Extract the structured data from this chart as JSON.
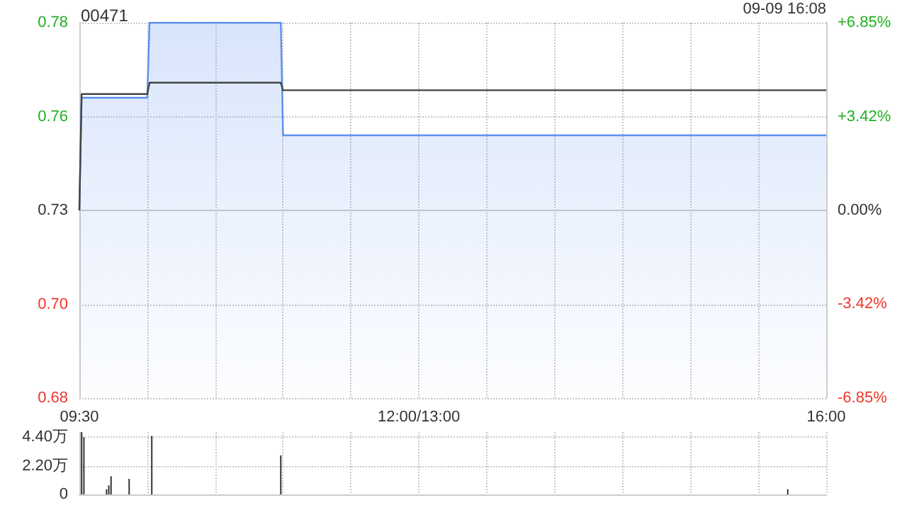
{
  "chart_data": [
    {
      "type": "line",
      "title": "00471",
      "annotations": [
        "09-09 16:08"
      ],
      "categories": [
        "09:30",
        null,
        null,
        null,
        null,
        null,
        null,
        null,
        null,
        null,
        null,
        null,
        null,
        null,
        null,
        null,
        null,
        null,
        null,
        null,
        null,
        null,
        null,
        null,
        null,
        null,
        null,
        null,
        null,
        null,
        null,
        null,
        null,
        null,
        null,
        null,
        null,
        null,
        null,
        null,
        null,
        null,
        null,
        null,
        null,
        null,
        null,
        null,
        null,
        null,
        null,
        null,
        null,
        null,
        null,
        null,
        null,
        null,
        null,
        null,
        null,
        null,
        null,
        null,
        null,
        null,
        null,
        null,
        null,
        null,
        null,
        null,
        null,
        null,
        null,
        null,
        null,
        null,
        null,
        null,
        null,
        null,
        null,
        null,
        null,
        null,
        null,
        null,
        null,
        null,
        null,
        null,
        null,
        null,
        null,
        null,
        null,
        null,
        null,
        null,
        null,
        null,
        null,
        null,
        null,
        null,
        null,
        null,
        null,
        null,
        null,
        null,
        null,
        null,
        null,
        null,
        null,
        null,
        null,
        null,
        null,
        null,
        null,
        null,
        null,
        null,
        null,
        null,
        null,
        null,
        null,
        null,
        null,
        null,
        null,
        null,
        null,
        null,
        null,
        null,
        null,
        null,
        null,
        null,
        null,
        null,
        null,
        null,
        null,
        null,
        "12:00/13:00",
        null,
        null,
        null,
        null,
        null,
        null,
        null,
        null,
        null,
        null,
        null,
        null,
        null,
        null,
        null,
        null,
        null,
        null,
        null,
        null,
        null,
        null,
        null,
        null,
        null,
        null,
        null,
        null,
        null,
        null,
        null,
        null,
        null,
        null,
        null,
        null,
        null,
        null,
        null,
        null,
        null,
        null,
        null,
        null,
        null,
        null,
        null,
        null,
        null,
        null,
        null,
        null,
        null,
        null,
        null,
        null,
        null,
        null,
        null,
        null,
        null,
        null,
        null,
        null,
        null,
        null,
        null,
        null,
        null,
        null,
        null,
        null,
        null,
        null,
        null,
        null,
        null,
        null,
        null,
        null,
        null,
        null,
        null,
        null,
        null,
        null,
        null,
        null,
        null,
        null,
        null,
        null,
        null,
        null,
        null,
        null,
        null,
        null,
        null,
        null,
        null,
        null,
        null,
        null,
        null,
        null,
        null,
        null,
        null,
        null,
        null,
        null,
        null,
        null,
        null,
        null,
        null,
        null,
        null,
        null,
        null,
        null,
        null,
        null,
        null,
        null,
        null,
        null,
        null,
        null,
        null,
        null,
        null,
        null,
        null,
        null,
        null,
        null,
        null,
        null,
        null,
        null,
        null,
        null,
        null,
        null,
        null,
        null,
        null,
        null,
        null,
        null,
        null,
        null,
        null,
        null,
        null,
        null,
        null,
        null,
        null,
        null,
        null,
        null,
        null,
        null,
        null,
        null,
        null,
        null,
        null,
        null,
        null,
        null,
        null,
        null,
        null,
        null,
        null,
        "16:00"
      ],
      "ylim": [
        0.68,
        0.78
      ],
      "yticks": [
        0.68,
        {
          "value": 0.705,
          "label": "0.70"
        },
        0.73,
        {
          "value": 0.755,
          "label": "0.76"
        },
        0.78
      ],
      "y2lim": [
        -6.85,
        6.85
      ],
      "y2ticks": [
        {
          "value": -6.85,
          "label": "-6.85%"
        },
        {
          "value": -3.42,
          "label": "-3.42%"
        },
        {
          "value": 0,
          "label": "0.00%"
        },
        {
          "value": 3.42,
          "label": "+3.42%"
        },
        {
          "value": 6.85,
          "label": "+6.85%"
        }
      ],
      "grid": true,
      "marker": "none",
      "series": [
        {
          "type": "area",
          "color": "#5b8ff0",
          "values": [
            0.73,
            0.76,
            0.76,
            0.76,
            0.76,
            0.76,
            0.76,
            0.76,
            0.76,
            0.76,
            0.76,
            0.76,
            0.76,
            0.76,
            0.76,
            0.76,
            0.76,
            0.76,
            0.76,
            0.76,
            0.76,
            0.76,
            0.76,
            0.76,
            0.76,
            0.76,
            0.76,
            0.76,
            0.76,
            0.76,
            0.76,
            0.78,
            0.78,
            0.78,
            0.78,
            0.78,
            0.78,
            0.78,
            0.78,
            0.78,
            0.78,
            0.78,
            0.78,
            0.78,
            0.78,
            0.78,
            0.78,
            0.78,
            0.78,
            0.78,
            0.78,
            0.78,
            0.78,
            0.78,
            0.78,
            0.78,
            0.78,
            0.78,
            0.78,
            0.78,
            0.78,
            0.78,
            0.78,
            0.78,
            0.78,
            0.78,
            0.78,
            0.78,
            0.78,
            0.78,
            0.78,
            0.78,
            0.78,
            0.78,
            0.78,
            0.78,
            0.78,
            0.78,
            0.78,
            0.78,
            0.78,
            0.78,
            0.78,
            0.78,
            0.78,
            0.78,
            0.78,
            0.78,
            0.78,
            0.78,
            0.75,
            0.75,
            0.75,
            0.75,
            0.75,
            0.75,
            0.75,
            0.75,
            0.75,
            0.75,
            0.75,
            0.75,
            0.75,
            0.75,
            0.75,
            0.75,
            0.75,
            0.75,
            0.75,
            0.75,
            0.75,
            0.75,
            0.75,
            0.75,
            0.75,
            0.75,
            0.75,
            0.75,
            0.75,
            0.75,
            0.75,
            0.75,
            0.75,
            0.75,
            0.75,
            0.75,
            0.75,
            0.75,
            0.75,
            0.75,
            0.75,
            0.75,
            0.75,
            0.75,
            0.75,
            0.75,
            0.75,
            0.75,
            0.75,
            0.75,
            0.75,
            0.75,
            0.75,
            0.75,
            0.75,
            0.75,
            0.75,
            0.75,
            0.75,
            0.75,
            0.75,
            0.75,
            0.75,
            0.75,
            0.75,
            0.75,
            0.75,
            0.75,
            0.75,
            0.75,
            0.75,
            0.75,
            0.75,
            0.75,
            0.75,
            0.75,
            0.75,
            0.75,
            0.75,
            0.75,
            0.75,
            0.75,
            0.75,
            0.75,
            0.75,
            0.75,
            0.75,
            0.75,
            0.75,
            0.75,
            0.75,
            0.75,
            0.75,
            0.75,
            0.75,
            0.75,
            0.75,
            0.75,
            0.75,
            0.75,
            0.75,
            0.75,
            0.75,
            0.75,
            0.75,
            0.75,
            0.75,
            0.75,
            0.75,
            0.75,
            0.75,
            0.75,
            0.75,
            0.75,
            0.75,
            0.75,
            0.75,
            0.75,
            0.75,
            0.75,
            0.75,
            0.75,
            0.75,
            0.75,
            0.75,
            0.75,
            0.75,
            0.75,
            0.75,
            0.75,
            0.75,
            0.75,
            0.75,
            0.75,
            0.75,
            0.75,
            0.75,
            0.75,
            0.75,
            0.75,
            0.75,
            0.75,
            0.75,
            0.75,
            0.75,
            0.75,
            0.75,
            0.75,
            0.75,
            0.75,
            0.75,
            0.75,
            0.75,
            0.75,
            0.75,
            0.75,
            0.75,
            0.75,
            0.75,
            0.75,
            0.75,
            0.75,
            0.75,
            0.75,
            0.75,
            0.75,
            0.75,
            0.75,
            0.75,
            0.75,
            0.75,
            0.75,
            0.75,
            0.75,
            0.75,
            0.75,
            0.75,
            0.75,
            0.75,
            0.75,
            0.75,
            0.75,
            0.75,
            0.75,
            0.75,
            0.75,
            0.75,
            0.75,
            0.75,
            0.75,
            0.75,
            0.75,
            0.75,
            0.75,
            0.75,
            0.75,
            0.75,
            0.75,
            0.75,
            0.75,
            0.75,
            0.75,
            0.75,
            0.75,
            0.75,
            0.75,
            0.75,
            0.75,
            0.75,
            0.75,
            0.75,
            0.75,
            0.75,
            0.75,
            0.75,
            0.75,
            0.75,
            0.75,
            0.75,
            0.75,
            0.75,
            0.75,
            0.75,
            0.75,
            0.75,
            0.75,
            0.75,
            0.75,
            0.75,
            0.75,
            0.75,
            0.75,
            0.75,
            0.75,
            0.75,
            0.75,
            0.75,
            0.75,
            0.75,
            0.75,
            0.75
          ]
        },
        {
          "color": "#444444",
          "values": [
            0.73,
            0.761,
            0.761,
            0.761,
            0.761,
            0.761,
            0.761,
            0.761,
            0.761,
            0.761,
            0.761,
            0.761,
            0.761,
            0.761,
            0.761,
            0.761,
            0.761,
            0.761,
            0.761,
            0.761,
            0.761,
            0.761,
            0.761,
            0.761,
            0.761,
            0.761,
            0.761,
            0.761,
            0.761,
            0.761,
            0.761,
            0.764,
            0.764,
            0.764,
            0.764,
            0.764,
            0.764,
            0.764,
            0.764,
            0.764,
            0.764,
            0.764,
            0.764,
            0.764,
            0.764,
            0.764,
            0.764,
            0.764,
            0.764,
            0.764,
            0.764,
            0.764,
            0.764,
            0.764,
            0.764,
            0.764,
            0.764,
            0.764,
            0.764,
            0.764,
            0.764,
            0.764,
            0.764,
            0.764,
            0.764,
            0.764,
            0.764,
            0.764,
            0.764,
            0.764,
            0.764,
            0.764,
            0.764,
            0.764,
            0.764,
            0.764,
            0.764,
            0.764,
            0.764,
            0.764,
            0.764,
            0.764,
            0.764,
            0.764,
            0.764,
            0.764,
            0.764,
            0.764,
            0.764,
            0.764,
            0.762,
            0.762,
            0.762,
            0.762,
            0.762,
            0.762,
            0.762,
            0.762,
            0.762,
            0.762,
            0.762,
            0.762,
            0.762,
            0.762,
            0.762,
            0.762,
            0.762,
            0.762,
            0.762,
            0.762,
            0.762,
            0.762,
            0.762,
            0.762,
            0.762,
            0.762,
            0.762,
            0.762,
            0.762,
            0.762,
            0.762,
            0.762,
            0.762,
            0.762,
            0.762,
            0.762,
            0.762,
            0.762,
            0.762,
            0.762,
            0.762,
            0.762,
            0.762,
            0.762,
            0.762,
            0.762,
            0.762,
            0.762,
            0.762,
            0.762,
            0.762,
            0.762,
            0.762,
            0.762,
            0.762,
            0.762,
            0.762,
            0.762,
            0.762,
            0.762,
            0.762,
            0.762,
            0.762,
            0.762,
            0.762,
            0.762,
            0.762,
            0.762,
            0.762,
            0.762,
            0.762,
            0.762,
            0.762,
            0.762,
            0.762,
            0.762,
            0.762,
            0.762,
            0.762,
            0.762,
            0.762,
            0.762,
            0.762,
            0.762,
            0.762,
            0.762,
            0.762,
            0.762,
            0.762,
            0.762,
            0.762,
            0.762,
            0.762,
            0.762,
            0.762,
            0.762,
            0.762,
            0.762,
            0.762,
            0.762,
            0.762,
            0.762,
            0.762,
            0.762,
            0.762,
            0.762,
            0.762,
            0.762,
            0.762,
            0.762,
            0.762,
            0.762,
            0.762,
            0.762,
            0.762,
            0.762,
            0.762,
            0.762,
            0.762,
            0.762,
            0.762,
            0.762,
            0.762,
            0.762,
            0.762,
            0.762,
            0.762,
            0.762,
            0.762,
            0.762,
            0.762,
            0.762,
            0.762,
            0.762,
            0.762,
            0.762,
            0.762,
            0.762,
            0.762,
            0.762,
            0.762,
            0.762,
            0.762,
            0.762,
            0.762,
            0.762,
            0.762,
            0.762,
            0.762,
            0.762,
            0.762,
            0.762,
            0.762,
            0.762,
            0.762,
            0.762,
            0.762,
            0.762,
            0.762,
            0.762,
            0.762,
            0.762,
            0.762,
            0.762,
            0.762,
            0.762,
            0.762,
            0.762,
            0.762,
            0.762,
            0.762,
            0.762,
            0.762,
            0.762,
            0.762,
            0.762,
            0.762,
            0.762,
            0.762,
            0.762,
            0.762,
            0.762,
            0.762,
            0.762,
            0.762,
            0.762,
            0.762,
            0.762,
            0.762,
            0.762,
            0.762,
            0.762,
            0.762,
            0.762,
            0.762,
            0.762,
            0.762,
            0.762,
            0.762,
            0.762,
            0.762,
            0.762,
            0.762,
            0.762,
            0.762,
            0.762,
            0.762,
            0.762,
            0.762,
            0.762,
            0.762,
            0.762,
            0.762,
            0.762,
            0.762,
            0.762,
            0.762,
            0.762,
            0.762,
            0.762,
            0.762,
            0.762,
            0.762,
            0.762,
            0.762,
            0.762,
            0.762,
            0.762,
            0.762,
            0.762,
            0.762,
            0.762,
            0.762,
            0.762,
            0.762,
            0.762,
            0.762,
            0.762,
            0.762,
            0.762,
            0.762
          ]
        }
      ]
    },
    {
      "type": "bar",
      "color": "#333333",
      "categories": [
        null,
        null,
        null,
        null,
        null,
        null,
        null,
        null,
        null,
        null,
        null,
        null,
        null,
        null,
        null,
        null,
        null,
        null,
        null,
        null,
        null,
        null,
        null,
        null,
        null,
        null,
        null,
        null,
        null,
        null,
        null,
        null,
        null,
        null,
        null,
        null,
        null,
        null,
        null,
        null,
        null,
        null,
        null,
        null,
        null,
        null,
        null,
        null,
        null,
        null,
        null,
        null,
        null,
        null,
        null,
        null,
        null,
        null,
        null,
        null,
        null,
        null,
        null,
        null,
        null,
        null,
        null,
        null,
        null,
        null,
        null,
        null,
        null,
        null,
        null,
        null,
        null,
        null,
        null,
        null,
        null,
        null,
        null,
        null,
        null,
        null,
        null,
        null,
        null,
        null,
        null,
        null,
        null,
        null,
        null,
        null,
        null,
        null,
        null,
        null,
        null,
        null,
        null,
        null,
        null,
        null,
        null,
        null,
        null,
        null,
        null,
        null,
        null,
        null,
        null,
        null,
        null,
        null,
        null,
        null,
        null,
        null,
        null,
        null,
        null,
        null,
        null,
        null,
        null,
        null,
        null,
        null,
        null,
        null,
        null,
        null,
        null,
        null,
        null,
        null,
        null,
        null,
        null,
        null,
        null,
        null,
        null,
        null,
        null,
        null,
        null,
        null,
        null,
        null,
        null,
        null,
        null,
        null,
        null,
        null,
        null,
        null,
        null,
        null,
        null,
        null,
        null,
        null,
        null,
        null,
        null,
        null,
        null,
        null,
        null,
        null,
        null,
        null,
        null,
        null,
        null,
        null,
        null,
        null,
        null,
        null,
        null,
        null,
        null,
        null,
        null,
        null,
        null,
        null,
        null,
        null,
        null,
        null,
        null,
        null,
        null,
        null,
        null,
        null,
        null,
        null,
        null,
        null,
        null,
        null,
        null,
        null,
        null,
        null,
        null,
        null,
        null,
        null,
        null,
        null,
        null,
        null,
        null,
        null,
        null,
        null,
        null,
        null,
        null,
        null,
        null,
        null,
        null,
        null,
        null,
        null,
        null,
        null,
        null,
        null,
        null,
        null,
        null,
        null,
        null,
        null,
        null,
        null,
        null,
        null,
        null,
        null,
        null,
        null,
        null,
        null,
        null,
        null,
        null,
        null,
        null,
        null,
        null,
        null,
        null,
        null,
        null,
        null,
        null,
        null,
        null,
        null,
        null,
        null,
        null,
        null,
        null,
        null,
        null,
        null,
        null,
        null,
        null,
        null,
        null,
        null,
        null,
        null,
        null,
        null,
        null,
        null,
        null,
        null,
        null,
        null,
        null,
        null,
        null,
        null,
        null,
        null,
        null,
        null,
        null,
        null,
        null,
        null,
        null,
        null,
        null,
        null,
        null,
        null,
        null,
        null,
        null,
        null,
        null,
        null,
        null,
        null,
        null,
        null,
        null,
        null,
        null,
        null,
        null,
        null,
        null
      ],
      "ylim": [
        0,
        4.8
      ],
      "yticks": [
        0,
        {
          "value": 2.2,
          "label": "2.20万"
        },
        {
          "value": 4.4,
          "label": "4.40万"
        }
      ],
      "tick_labels": "y",
      "grid": true,
      "values": [
        null,
        4.8,
        4.4,
        null,
        null,
        null,
        null,
        null,
        null,
        null,
        null,
        null,
        0.4,
        0.7,
        1.4,
        null,
        null,
        null,
        null,
        null,
        null,
        null,
        1.2,
        null,
        null,
        null,
        null,
        null,
        null,
        null,
        null,
        null,
        4.5,
        null,
        null,
        null,
        null,
        null,
        null,
        null,
        null,
        null,
        null,
        null,
        null,
        null,
        null,
        null,
        null,
        null,
        null,
        null,
        null,
        null,
        null,
        null,
        null,
        null,
        null,
        null,
        null,
        null,
        null,
        null,
        null,
        null,
        null,
        null,
        null,
        null,
        null,
        null,
        null,
        null,
        null,
        null,
        null,
        null,
        null,
        null,
        null,
        null,
        null,
        null,
        null,
        null,
        null,
        null,
        null,
        3.0,
        null,
        null,
        null,
        null,
        null,
        null,
        null,
        null,
        null,
        null,
        null,
        null,
        null,
        null,
        null,
        null,
        null,
        null,
        null,
        null,
        null,
        null,
        null,
        null,
        null,
        null,
        null,
        null,
        null,
        null,
        null,
        null,
        null,
        null,
        null,
        null,
        null,
        null,
        null,
        null,
        null,
        null,
        null,
        null,
        null,
        null,
        null,
        null,
        null,
        null,
        null,
        null,
        null,
        null,
        null,
        null,
        null,
        null,
        null,
        null,
        null,
        null,
        null,
        null,
        null,
        null,
        null,
        null,
        null,
        null,
        null,
        null,
        null,
        null,
        null,
        null,
        null,
        null,
        null,
        null,
        null,
        null,
        null,
        null,
        null,
        null,
        null,
        null,
        null,
        null,
        null,
        null,
        null,
        null,
        null,
        null,
        null,
        null,
        null,
        null,
        null,
        null,
        null,
        null,
        null,
        null,
        null,
        null,
        null,
        null,
        null,
        null,
        null,
        null,
        null,
        null,
        null,
        null,
        null,
        null,
        null,
        null,
        null,
        null,
        null,
        null,
        null,
        null,
        null,
        null,
        null,
        null,
        null,
        null,
        null,
        null,
        null,
        null,
        null,
        null,
        null,
        null,
        null,
        null,
        null,
        null,
        null,
        null,
        null,
        null,
        null,
        null,
        null,
        null,
        null,
        null,
        null,
        null,
        null,
        null,
        null,
        null,
        null,
        null,
        null,
        null,
        null,
        null,
        null,
        null,
        null,
        null,
        null,
        null,
        null,
        null,
        null,
        null,
        null,
        null,
        null,
        null,
        null,
        null,
        null,
        null,
        null,
        null,
        null,
        null,
        null,
        null,
        null,
        null,
        null,
        null,
        null,
        null,
        null,
        null,
        null,
        null,
        null,
        null,
        null,
        null,
        null,
        null,
        null,
        null,
        null,
        null,
        null,
        null,
        null,
        null,
        null,
        null,
        null,
        null,
        null,
        null,
        null,
        0.4,
        null,
        null,
        null,
        null,
        null,
        null,
        null,
        null,
        null,
        null,
        null,
        null,
        null,
        null,
        null,
        null,
        null
      ]
    }
  ]
}
